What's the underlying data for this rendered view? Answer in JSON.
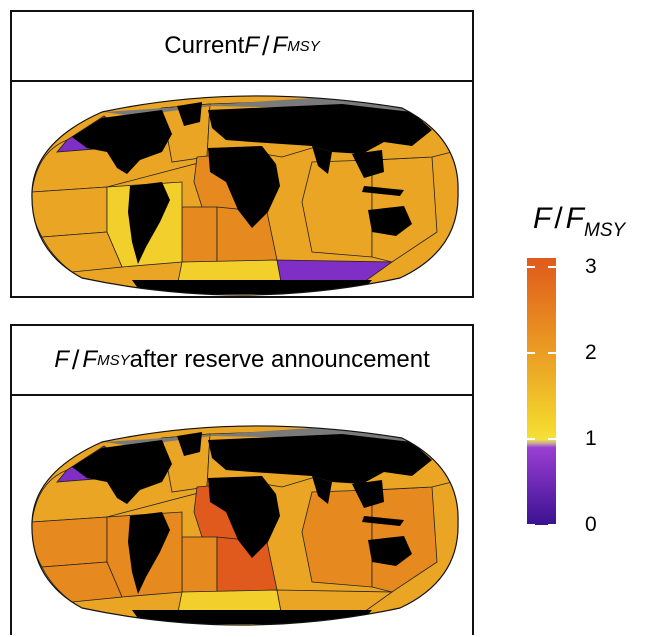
{
  "panels": [
    {
      "title_main": "Current ",
      "title_var": "F",
      "title_sep": "/",
      "title_var2": "F",
      "title_sub": "MSY",
      "title_tail": ""
    },
    {
      "title_main": "",
      "title_var": "F",
      "title_sep": "/",
      "title_var2": "F",
      "title_sub": "MSY",
      "title_tail": " after reserve announcement"
    }
  ],
  "legend": {
    "title_var": "F",
    "title_sep": "/",
    "title_var2": "F",
    "title_sub": "MSY",
    "ticks": [
      "3",
      "2",
      "1",
      "0"
    ],
    "scale_min": 0,
    "scale_max": 3.1
  },
  "colors": {
    "deep_orange": "#df5a1c",
    "orange": "#e6891f",
    "amber": "#eba524",
    "yellow": "#f3cf2c",
    "purple": "#7f2fc6",
    "land": "#000000",
    "ice": "#7a7a7a"
  },
  "maps": [
    {
      "regions": [
        {
          "id": "nw-pacific-north",
          "color": "#7f2fc6"
        },
        {
          "id": "ne-pacific",
          "color": "#eba524"
        },
        {
          "id": "nw-atlantic",
          "color": "#eba524"
        },
        {
          "id": "ne-atlantic",
          "color": "#eba524"
        },
        {
          "id": "central-e-atlantic",
          "color": "#e6891f"
        },
        {
          "id": "w-indian",
          "color": "#eba524"
        },
        {
          "id": "e-indian",
          "color": "#eba524"
        },
        {
          "id": "w-central-pacific",
          "color": "#eba524"
        },
        {
          "id": "e-central-pacific",
          "color": "#eba524"
        },
        {
          "id": "sw-atlantic",
          "color": "#e6891f"
        },
        {
          "id": "se-atlantic",
          "color": "#e6891f"
        },
        {
          "id": "se-pacific",
          "color": "#f3cf2c"
        },
        {
          "id": "sw-pacific",
          "color": "#eba524"
        },
        {
          "id": "antarctic-atlantic",
          "color": "#f3cf2c"
        },
        {
          "id": "antarctic-indian",
          "color": "#7f2fc6"
        }
      ]
    },
    {
      "regions": [
        {
          "id": "nw-pacific-north",
          "color": "#7f2fc6"
        },
        {
          "id": "ne-pacific",
          "color": "#eba524"
        },
        {
          "id": "nw-atlantic",
          "color": "#eba524"
        },
        {
          "id": "ne-atlantic",
          "color": "#eba524"
        },
        {
          "id": "central-e-atlantic",
          "color": "#df5a1c"
        },
        {
          "id": "w-indian",
          "color": "#e6891f"
        },
        {
          "id": "e-indian",
          "color": "#e6891f"
        },
        {
          "id": "w-central-pacific",
          "color": "#eba524"
        },
        {
          "id": "e-central-pacific",
          "color": "#e6891f"
        },
        {
          "id": "sw-atlantic",
          "color": "#e6891f"
        },
        {
          "id": "se-atlantic",
          "color": "#df5a1c"
        },
        {
          "id": "se-pacific",
          "color": "#e6891f"
        },
        {
          "id": "sw-pacific",
          "color": "#e6891f"
        },
        {
          "id": "antarctic-atlantic",
          "color": "#f3cf2c"
        },
        {
          "id": "antarctic-indian",
          "color": "#eba524"
        }
      ]
    }
  ]
}
